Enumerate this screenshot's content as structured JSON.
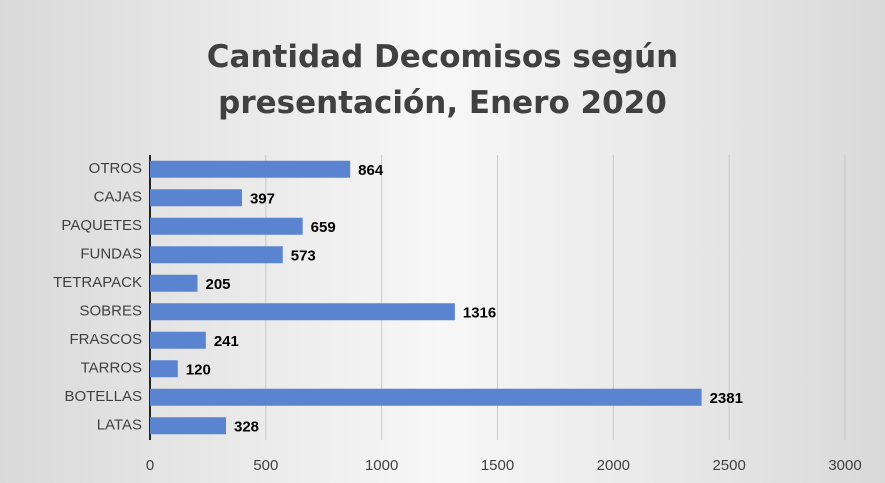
{
  "chart_data": {
    "type": "barh",
    "title": "Cantidad Decomisos según presentación, Enero 2020",
    "categories": [
      "OTROS",
      "CAJAS",
      "PAQUETES",
      "FUNDAS",
      "TETRAPACK",
      "SOBRES",
      "FRASCOS",
      "TARROS",
      "BOTELLAS",
      "LATAS"
    ],
    "values": [
      864,
      397,
      659,
      573,
      205,
      1316,
      241,
      120,
      2381,
      328
    ],
    "color": "#5b84d0",
    "xlim": [
      0,
      3000
    ],
    "xticks": [
      0,
      500,
      1000,
      1500,
      2000,
      2500,
      3000
    ],
    "grid": true
  }
}
